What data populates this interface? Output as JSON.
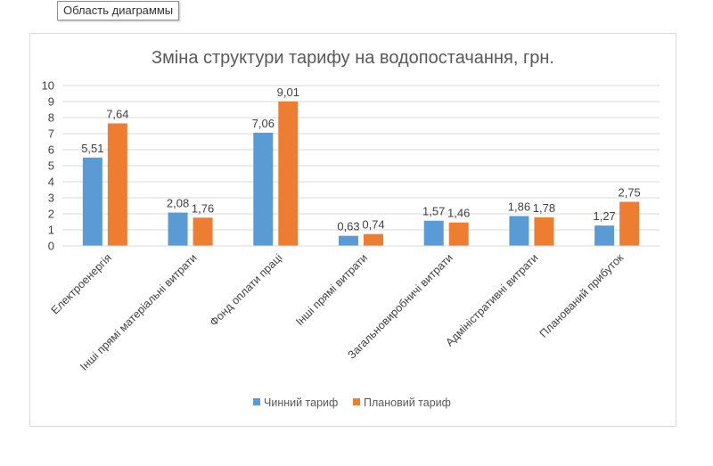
{
  "tooltip": {
    "label": "Область диаграммы"
  },
  "chart_data": {
    "type": "bar",
    "title": "Зміна структури тарифу на водопостачання, грн.",
    "xlabel": "",
    "ylabel": "",
    "ylim": [
      0,
      10
    ],
    "yticks": [
      "0",
      "1",
      "2",
      "3",
      "4",
      "5",
      "6",
      "7",
      "8",
      "9",
      "10"
    ],
    "grid": true,
    "legend_position": "bottom",
    "categories": [
      "Електроенергія",
      "Інші прямі матеріальні витрати",
      "Фонд оплати праці",
      "Інші прямі  витрати",
      "Загальновиробничі витрати",
      "Адміністративні витрати",
      "Планований прибуток"
    ],
    "series": [
      {
        "name": "Чинний тариф",
        "color": "#5b9bd5",
        "values": [
          5.51,
          2.08,
          7.06,
          0.63,
          1.57,
          1.86,
          1.27
        ],
        "labels": [
          "5,51",
          "2,08",
          "7,06",
          "0,63",
          "1,57",
          "1,86",
          "1,27"
        ]
      },
      {
        "name": "Плановий тариф",
        "color": "#ed7d31",
        "values": [
          7.64,
          1.76,
          9.01,
          0.74,
          1.46,
          1.78,
          2.75
        ],
        "labels": [
          "7,64",
          "1,76",
          "9,01",
          "0,74",
          "1,46",
          "1,78",
          "2,75"
        ]
      }
    ]
  }
}
